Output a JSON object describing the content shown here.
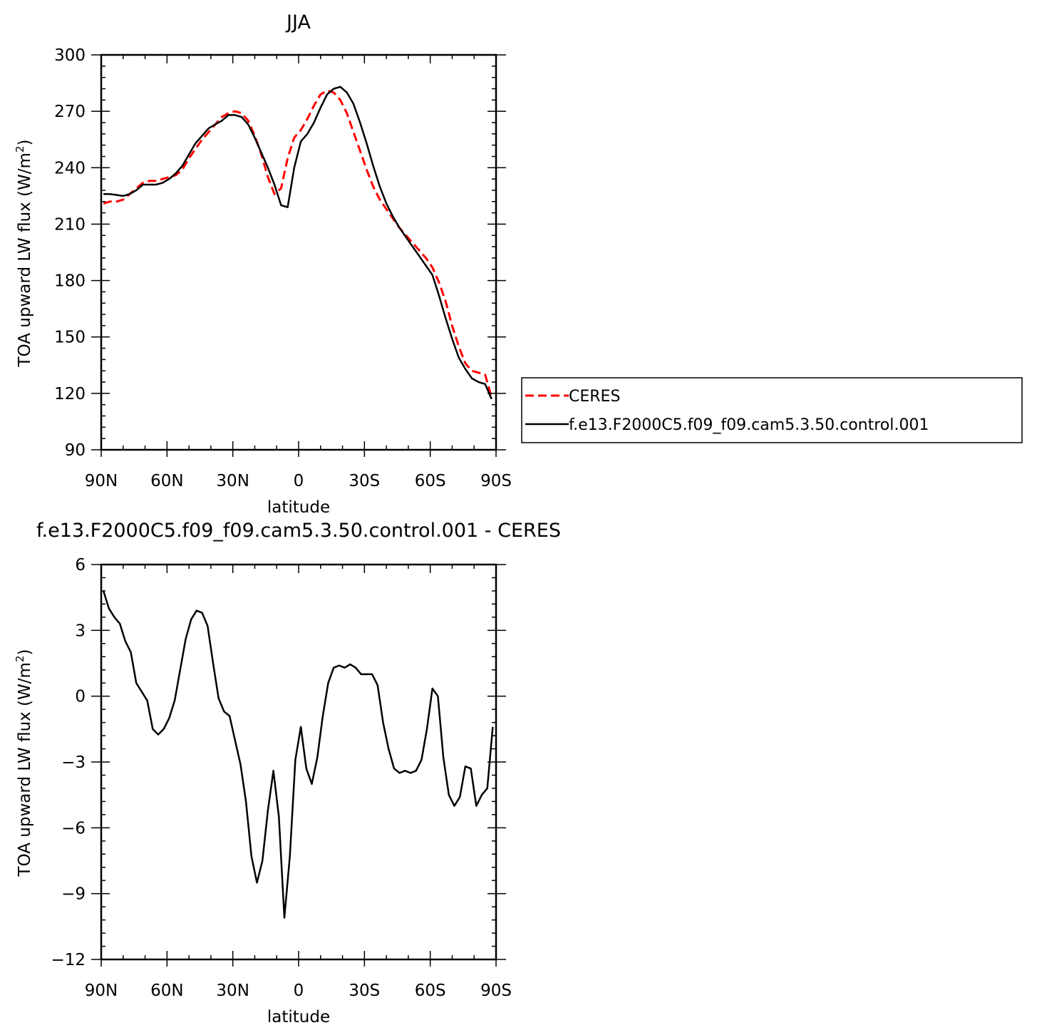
{
  "chart_data": [
    {
      "type": "line",
      "title": "JJA",
      "xlabel": "latitude",
      "ylabel": "TOA upward LW flux (W/m²)",
      "ylabel_main": "TOA upward LW flux (W/m",
      "ylabel_sup": "2",
      "ylabel_close": ")",
      "xlim": [
        90,
        -90
      ],
      "ylim": [
        90,
        300
      ],
      "x_ticks": [
        90,
        60,
        30,
        0,
        -30,
        -60,
        -90
      ],
      "x_tick_labels": [
        "90N",
        "60N",
        "30N",
        "0",
        "30S",
        "60S",
        "90S"
      ],
      "y_ticks": [
        90,
        120,
        150,
        180,
        210,
        240,
        270,
        300
      ],
      "y_tick_labels": [
        "90",
        "120",
        "150",
        "180",
        "210",
        "240",
        "270",
        "300"
      ],
      "legend": {
        "position": "right"
      },
      "series": [
        {
          "name": "CERES",
          "color": "#ff0000",
          "style": "dashed",
          "x": [
            89,
            86,
            83,
            80,
            77,
            74,
            71,
            68,
            65,
            62,
            59,
            56,
            53,
            50,
            47,
            44,
            41,
            38,
            35,
            32,
            29,
            26,
            23,
            20,
            17,
            14,
            11,
            8,
            5,
            2,
            -1,
            -4,
            -7,
            -10,
            -13,
            -16,
            -19,
            -22,
            -25,
            -28,
            -31,
            -34,
            -37,
            -40,
            -43,
            -46,
            -49,
            -52,
            -55,
            -58,
            -61,
            -64,
            -67,
            -70,
            -73,
            -76,
            -79,
            -82,
            -85,
            -88
          ],
          "y": [
            221,
            222,
            222,
            223,
            226,
            229,
            232,
            233,
            233,
            234,
            235,
            236,
            239,
            245,
            250,
            255,
            259,
            263,
            267,
            269,
            270,
            269,
            265,
            257,
            247,
            235,
            226,
            229,
            245,
            256,
            260,
            266,
            273,
            279,
            281,
            280,
            276,
            269,
            259,
            249,
            239,
            230,
            223,
            218,
            213,
            208,
            204,
            200,
            196,
            192,
            187,
            179,
            169,
            156,
            145,
            136,
            132,
            131,
            130,
            118
          ]
        },
        {
          "name": "f.e13.F2000C5.f09_f09.cam5.3.50.control.001",
          "color": "#000000",
          "style": "solid",
          "x": [
            89,
            86,
            83,
            80,
            77,
            74,
            71,
            68,
            65,
            62,
            59,
            56,
            53,
            50,
            47,
            44,
            41,
            38,
            35,
            32,
            29,
            26,
            23,
            20,
            17,
            14,
            11,
            8,
            5,
            2,
            -1,
            -4,
            -7,
            -10,
            -13,
            -16,
            -19,
            -22,
            -25,
            -28,
            -31,
            -34,
            -37,
            -40,
            -43,
            -46,
            -49,
            -52,
            -55,
            -58,
            -61,
            -64,
            -67,
            -70,
            -73,
            -76,
            -79,
            -82,
            -85,
            -88
          ],
          "y": [
            226,
            226,
            225.5,
            225,
            226,
            228,
            231,
            231,
            231,
            232,
            234,
            237,
            241,
            247,
            253,
            257,
            261,
            263,
            265,
            268,
            268,
            267,
            263,
            256,
            248,
            240,
            231,
            220,
            219,
            240,
            254,
            258,
            264,
            272,
            279,
            282,
            283,
            280,
            274,
            264,
            253,
            241,
            230,
            221,
            214,
            208,
            203,
            198,
            193,
            188,
            183,
            172,
            160,
            149,
            139,
            133,
            128,
            126,
            125,
            117
          ]
        }
      ]
    },
    {
      "type": "line",
      "title": "f.e13.F2000C5.f09_f09.cam5.3.50.control.001  -  CERES",
      "xlabel": "latitude",
      "ylabel": "TOA upward LW flux (W/m²)",
      "ylabel_main": "TOA upward LW flux (W/m",
      "ylabel_sup": "2",
      "ylabel_close": ")",
      "xlim": [
        90,
        -90
      ],
      "ylim": [
        -12,
        6
      ],
      "x_ticks": [
        90,
        60,
        30,
        0,
        -30,
        -60,
        -90
      ],
      "x_tick_labels": [
        "90N",
        "60N",
        "30N",
        "0",
        "30S",
        "60S",
        "90S"
      ],
      "y_ticks": [
        -12,
        -9,
        -6,
        -3,
        0,
        3,
        6
      ],
      "y_tick_labels": [
        "−12",
        "−9",
        "−6",
        "−3",
        "0",
        "3",
        "6"
      ],
      "series": [
        {
          "color": "#000000",
          "style": "solid",
          "x": [
            89,
            86.5,
            84,
            81.5,
            79,
            76.5,
            74,
            71.5,
            69,
            66.5,
            64,
            61.5,
            59,
            56.5,
            54,
            51.5,
            49,
            46.5,
            44,
            41.5,
            39,
            36.5,
            34,
            31.5,
            29,
            26.5,
            24,
            21.5,
            19,
            16.5,
            14,
            11.5,
            9,
            6.5,
            4,
            1.5,
            -1,
            -3.5,
            -6,
            -8.5,
            -11,
            -13.5,
            -16,
            -18.5,
            -21,
            -23.5,
            -26,
            -28.5,
            -31,
            -33.5,
            -36,
            -38.5,
            -41,
            -43.5,
            -46,
            -48.5,
            -51,
            -53.5,
            -56,
            -58.5,
            -61,
            -63.5,
            -66,
            -68.5,
            -71,
            -73.5,
            -76,
            -78.5,
            -81,
            -83.5,
            -86,
            -88.5
          ],
          "y": [
            4.8,
            4.0,
            3.6,
            3.3,
            2.5,
            2.0,
            0.6,
            0.2,
            -0.2,
            -1.5,
            -1.75,
            -1.5,
            -1.0,
            -0.2,
            1.2,
            2.6,
            3.5,
            3.9,
            3.8,
            3.2,
            1.5,
            -0.1,
            -0.7,
            -0.9,
            -2.0,
            -3.1,
            -4.8,
            -7.3,
            -8.5,
            -7.5,
            -5.2,
            -3.4,
            -5.5,
            -10.1,
            -7.3,
            -2.9,
            -1.4,
            -3.3,
            -4.0,
            -2.8,
            -0.9,
            0.6,
            1.3,
            1.4,
            1.3,
            1.45,
            1.3,
            1.0,
            1.0,
            1.0,
            0.5,
            -1.2,
            -2.4,
            -3.3,
            -3.5,
            -3.4,
            -3.5,
            -3.4,
            -2.9,
            -1.5,
            0.35,
            0.0,
            -2.8,
            -4.5,
            -5.0,
            -4.6,
            -3.2,
            -3.3,
            -5.0,
            -4.5,
            -4.2,
            -1.4
          ]
        }
      ]
    }
  ]
}
